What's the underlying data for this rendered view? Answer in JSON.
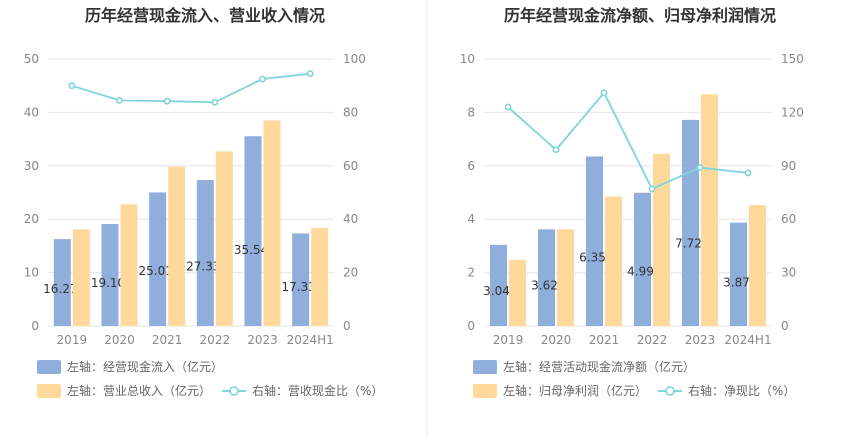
{
  "colors": {
    "bar_blue": "#8FAEDC",
    "bar_orange": "#FFD99C",
    "line_teal": "#7FD3DA",
    "grid": "#E6E6E6",
    "divider": "#EEEEEE",
    "legend_text": "#666666",
    "title_text": "#333333",
    "tick_text": "#888888"
  },
  "chart_data": [
    {
      "type": "bar",
      "title": "历年经营现金流入、营业收入情况",
      "categories": [
        "2019",
        "2020",
        "2021",
        "2022",
        "2023",
        "2024H1"
      ],
      "left_axis": {
        "ylim": [
          0,
          50
        ],
        "ticks": [
          "0",
          "10",
          "20",
          "30",
          "40",
          "50"
        ]
      },
      "right_axis": {
        "ylim": [
          0,
          100
        ],
        "ticks": [
          "0",
          "20",
          "40",
          "60",
          "80",
          "100"
        ]
      },
      "series": [
        {
          "name": "左轴：经营现金流入（亿元）",
          "axis": "left",
          "kind": "bar",
          "color": "#8FAEDC",
          "values": [
            16.27,
            19.1,
            25.01,
            27.33,
            35.54,
            17.33
          ],
          "labels": [
            "16.27",
            "19.10",
            "25.01",
            "27.33",
            "35.54",
            "17.33"
          ]
        },
        {
          "name": "左轴：营业总收入（亿元）",
          "axis": "left",
          "kind": "bar",
          "color": "#FFD99C",
          "values": [
            18.1,
            22.8,
            29.8,
            32.7,
            38.5,
            18.4
          ]
        },
        {
          "name": "右轴：营收现金比（%）",
          "axis": "right",
          "kind": "line",
          "color": "#7FD3DA",
          "values": [
            90,
            84.5,
            84.2,
            83.8,
            92.5,
            94.5
          ]
        }
      ],
      "legend_position": "bottom",
      "grid": true
    },
    {
      "type": "bar",
      "title": "历年经营现金流净额、归母净利润情况",
      "categories": [
        "2019",
        "2020",
        "2021",
        "2022",
        "2023",
        "2024H1"
      ],
      "left_axis": {
        "ylim": [
          0,
          10
        ],
        "ticks": [
          "0",
          "2",
          "4",
          "6",
          "8",
          "10"
        ]
      },
      "right_axis": {
        "ylim": [
          0,
          150
        ],
        "ticks": [
          "0",
          "30",
          "60",
          "90",
          "120",
          "150"
        ]
      },
      "series": [
        {
          "name": "左轴：经营活动现金流净额（亿元）",
          "axis": "left",
          "kind": "bar",
          "color": "#8FAEDC",
          "values": [
            3.04,
            3.62,
            6.35,
            4.99,
            7.72,
            3.87
          ],
          "labels": [
            "3.04",
            "3.62",
            "6.35",
            "4.99",
            "7.72",
            "3.87"
          ]
        },
        {
          "name": "左轴：归母净利润（亿元）",
          "axis": "left",
          "kind": "bar",
          "color": "#FFD99C",
          "values": [
            2.48,
            3.62,
            4.85,
            6.45,
            8.68,
            4.53
          ]
        },
        {
          "name": "右轴：净现比（%）",
          "axis": "right",
          "kind": "line",
          "color": "#7FD3DA",
          "values": [
            123,
            99,
            131,
            77,
            89,
            86
          ]
        }
      ],
      "legend_position": "bottom",
      "grid": true
    }
  ]
}
